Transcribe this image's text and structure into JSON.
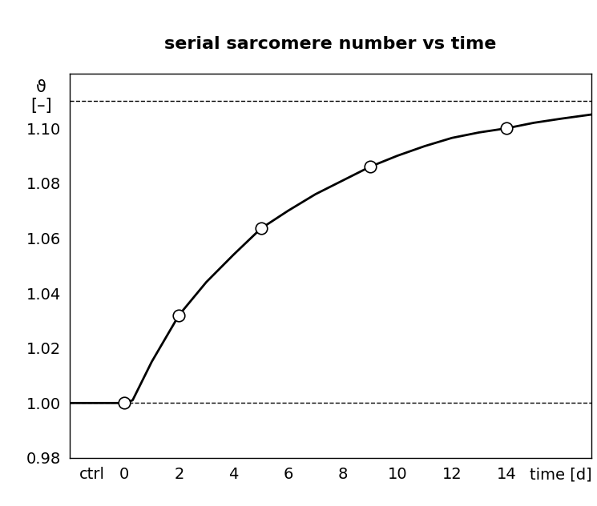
{
  "chart_data": {
    "type": "line",
    "title": "serial sarcomere number vs time",
    "y_label": "ϑ\n[–]",
    "xlim": [
      -2,
      17.1
    ],
    "xticks": [
      {
        "value": -1.2,
        "label": "ctrl"
      },
      0,
      2,
      4,
      6,
      8,
      10,
      12,
      14,
      {
        "value": 16,
        "label": "time [d]"
      }
    ],
    "ylim": [
      0.98,
      1.12
    ],
    "yticks": [
      0.98,
      {
        "value": 1.0,
        "label": "1.00"
      },
      1.02,
      1.04,
      1.06,
      1.08,
      {
        "value": 1.1,
        "label": "1.10"
      }
    ],
    "reference_lines": [
      1.0,
      1.11
    ],
    "grid": false,
    "series": [
      {
        "type": "line",
        "color": "#000000",
        "line_style": "solid",
        "x": [
          -2,
          0,
          0.3,
          1,
          2,
          3,
          4,
          5,
          6,
          7,
          8,
          9,
          10,
          11,
          12,
          13,
          14,
          15,
          16,
          17.1
        ],
        "values": [
          1.0,
          1.0,
          1.001,
          1.015,
          1.032,
          1.044,
          1.054,
          1.0635,
          1.07,
          1.076,
          1.081,
          1.086,
          1.09,
          1.0935,
          1.0965,
          1.0985,
          1.1,
          1.102,
          1.1035,
          1.105
        ]
      },
      {
        "type": "scatter",
        "color": "#ffffff",
        "marker": "o",
        "x": [
          0,
          2,
          5,
          9,
          14
        ],
        "values": [
          1.0,
          1.032,
          1.0635,
          1.086,
          1.1
        ]
      }
    ]
  }
}
